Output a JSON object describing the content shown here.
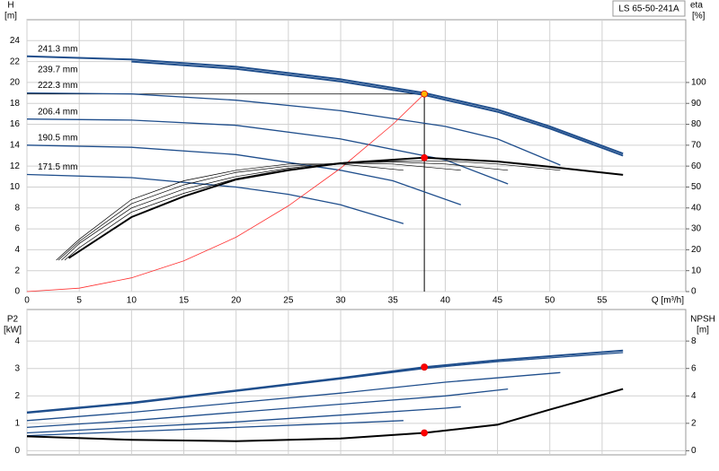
{
  "chart_data": [
    {
      "type": "line",
      "title": "LS 65-50-241A",
      "ylabel": "H",
      "yunit": "[m]",
      "y2label": "eta",
      "y2unit": "[%]",
      "xlabel": "Q [m³/h]",
      "xlim": [
        0,
        63
      ],
      "xticks": [
        0,
        5,
        10,
        15,
        20,
        25,
        30,
        35,
        40,
        45,
        50,
        55
      ],
      "show_xtick_labels": true,
      "ylim": [
        0,
        26
      ],
      "yticks": [
        0,
        2,
        4,
        6,
        8,
        10,
        12,
        14,
        16,
        18,
        20,
        22,
        24
      ],
      "y2lim": [
        0,
        130
      ],
      "y2ticks": [
        0,
        10,
        20,
        30,
        40,
        50,
        60,
        70,
        80,
        90,
        100
      ],
      "grid": true,
      "guide_lines": true,
      "series": [
        {
          "name": "241.3 mm",
          "color": "#1f4e8c",
          "width": 2,
          "x": [
            0,
            10,
            20,
            30,
            38,
            45,
            50,
            57
          ],
          "values": [
            22.5,
            22.2,
            21.5,
            20.3,
            19.0,
            17.4,
            15.8,
            13.2
          ]
        },
        {
          "name": "239.7 mm",
          "color": "#1f4e8c",
          "width": 2,
          "x": [
            10,
            20,
            30,
            38,
            45,
            50,
            57
          ],
          "values": [
            22.0,
            21.3,
            20.1,
            18.8,
            17.2,
            15.6,
            13.0
          ]
        },
        {
          "name": "222.3 mm",
          "color": "#1f4e8c",
          "width": 1.3,
          "x": [
            0,
            10,
            20,
            30,
            40,
            45,
            51
          ],
          "values": [
            19.0,
            18.9,
            18.3,
            17.3,
            15.8,
            14.6,
            12.1
          ]
        },
        {
          "name": "206.4 mm",
          "color": "#1f4e8c",
          "width": 1.3,
          "x": [
            0,
            10,
            20,
            30,
            40,
            46
          ],
          "values": [
            16.5,
            16.4,
            15.9,
            14.6,
            12.6,
            10.3
          ]
        },
        {
          "name": "190.5 mm",
          "color": "#1f4e8c",
          "width": 1.3,
          "x": [
            0,
            10,
            20,
            30,
            35,
            41.5
          ],
          "values": [
            14.0,
            13.8,
            13.1,
            11.6,
            10.6,
            8.3
          ]
        },
        {
          "name": "171.5 mm",
          "color": "#1f4e8c",
          "width": 1.3,
          "x": [
            0,
            10,
            20,
            25,
            30,
            36
          ],
          "values": [
            11.2,
            10.9,
            10.0,
            9.3,
            8.3,
            6.5
          ]
        },
        {
          "color": "#ff3030",
          "width": 0.8,
          "x": [
            0,
            5,
            10,
            15,
            20,
            25,
            30,
            35,
            38
          ],
          "values": [
            0,
            0.33,
            1.31,
            2.94,
            5.2,
            8.2,
            11.8,
            16.0,
            18.9
          ]
        },
        {
          "axis": "y2",
          "color": "#000000",
          "width": 0.7,
          "x": [
            2.8,
            5,
            10,
            15,
            20,
            25,
            30,
            36
          ],
          "values": [
            15,
            25,
            44,
            53,
            58,
            61,
            61,
            58
          ]
        },
        {
          "axis": "y2",
          "color": "#000000",
          "width": 0.7,
          "x": [
            3,
            5,
            10,
            15,
            20,
            25,
            30,
            35,
            41.5
          ],
          "values": [
            15,
            24,
            42,
            51,
            57,
            60,
            61.5,
            61,
            58
          ]
        },
        {
          "axis": "y2",
          "color": "#000000",
          "width": 0.7,
          "x": [
            3.3,
            5,
            10,
            15,
            20,
            25,
            30,
            35,
            40,
            46
          ],
          "values": [
            15,
            23,
            40,
            49,
            55,
            59,
            61.5,
            62,
            61,
            58
          ]
        },
        {
          "axis": "y2",
          "color": "#000000",
          "width": 0.7,
          "x": [
            3.6,
            5,
            10,
            15,
            20,
            25,
            30,
            35,
            40,
            45,
            51
          ],
          "values": [
            15,
            21,
            38,
            47,
            54,
            58.5,
            61,
            62.5,
            62.5,
            61,
            58
          ]
        },
        {
          "axis": "y2",
          "color": "#000000",
          "width": 2,
          "x": [
            4,
            10,
            15,
            20,
            25,
            30,
            38,
            45,
            50,
            57
          ],
          "values": [
            16,
            35.6,
            45.5,
            53.6,
            58,
            61.4,
            64,
            62.2,
            59.7,
            55.8
          ]
        }
      ],
      "points": [
        {
          "x": 38,
          "y": 18.9,
          "color": "#ffb400"
        },
        {
          "x": 38,
          "y": 64,
          "axis": "y2",
          "color": "#ff0000"
        }
      ]
    },
    {
      "type": "line",
      "ylabel": "P2",
      "yunit": "[kW]",
      "y2label": "NPSH",
      "y2unit": "[m]",
      "xlim": [
        0,
        63
      ],
      "xticks": [
        0,
        5,
        10,
        15,
        20,
        25,
        30,
        35,
        40,
        45,
        50,
        55
      ],
      "show_xtick_labels": false,
      "ylim": [
        -0.15,
        5.15
      ],
      "yticks": [
        0,
        1,
        2,
        3,
        4
      ],
      "y2lim": [
        -0.3,
        10.3
      ],
      "y2ticks": [
        0,
        2,
        4,
        6,
        8
      ],
      "grid": true,
      "guide_lines": false,
      "series": [
        {
          "color": "#1f4e8c",
          "width": 2,
          "x": [
            0,
            10,
            20,
            30,
            38,
            45,
            57
          ],
          "values": [
            1.4,
            1.75,
            2.2,
            2.65,
            3.05,
            3.3,
            3.65
          ]
        },
        {
          "color": "#1f4e8c",
          "width": 1.3,
          "x": [
            0,
            10,
            20,
            30,
            38,
            45,
            57
          ],
          "values": [
            1.37,
            1.72,
            2.17,
            2.62,
            3.0,
            3.25,
            3.58
          ]
        },
        {
          "color": "#1f4e8c",
          "width": 1.3,
          "x": [
            0,
            10,
            20,
            30,
            40,
            51
          ],
          "values": [
            1.1,
            1.4,
            1.75,
            2.1,
            2.5,
            2.85
          ]
        },
        {
          "color": "#1f4e8c",
          "width": 1.3,
          "x": [
            0,
            10,
            20,
            30,
            40,
            46
          ],
          "values": [
            0.85,
            1.1,
            1.4,
            1.7,
            2.0,
            2.25
          ]
        },
        {
          "color": "#1f4e8c",
          "width": 1.3,
          "x": [
            0,
            10,
            20,
            30,
            40,
            41.5
          ],
          "values": [
            0.65,
            0.85,
            1.05,
            1.3,
            1.55,
            1.6
          ]
        },
        {
          "color": "#1f4e8c",
          "width": 1.3,
          "x": [
            0,
            10,
            20,
            30,
            36
          ],
          "values": [
            0.55,
            0.7,
            0.85,
            1.0,
            1.1
          ]
        },
        {
          "axis": "y2",
          "color": "#000000",
          "width": 2,
          "x": [
            0,
            10,
            20,
            30,
            38,
            45,
            50,
            57
          ],
          "values": [
            1.05,
            0.8,
            0.7,
            0.9,
            1.3,
            1.9,
            3.0,
            4.5
          ]
        }
      ],
      "points": [
        {
          "x": 38,
          "y": 3.05,
          "color": "#ff0000"
        },
        {
          "x": 38,
          "y": 1.3,
          "axis": "y2",
          "color": "#ff0000"
        }
      ]
    }
  ]
}
